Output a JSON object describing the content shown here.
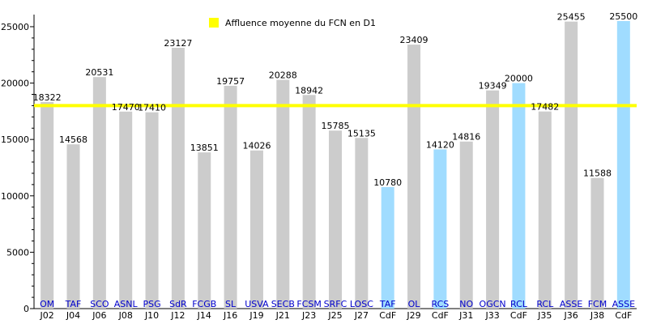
{
  "legend": {
    "label": "Affluence moyenne du FCN en D1",
    "color": "#ffff00"
  },
  "chart_data": {
    "type": "bar",
    "ylim": [
      0,
      25500
    ],
    "yticks": [
      0,
      5000,
      10000,
      15000,
      20000,
      25000
    ],
    "grid": false,
    "legend_position": "top-center",
    "colors": {
      "league": "#cccccc",
      "cup": "#a0dcff",
      "average_line": "#ffff00"
    },
    "average": 18000,
    "categories": [
      {
        "team": "OM",
        "round": "J02",
        "value": 18322,
        "kind": "league"
      },
      {
        "team": "TAF",
        "round": "J04",
        "value": 14568,
        "kind": "league"
      },
      {
        "team": "SCO",
        "round": "J06",
        "value": 20531,
        "kind": "league"
      },
      {
        "team": "ASNL",
        "round": "J08",
        "value": 17470,
        "kind": "league"
      },
      {
        "team": "PSG",
        "round": "J10",
        "value": 17410,
        "kind": "league"
      },
      {
        "team": "SdR",
        "round": "J12",
        "value": 23127,
        "kind": "league"
      },
      {
        "team": "FCGB",
        "round": "J14",
        "value": 13851,
        "kind": "league"
      },
      {
        "team": "SL",
        "round": "J16",
        "value": 19757,
        "kind": "league"
      },
      {
        "team": "USVA",
        "round": "J19",
        "value": 14026,
        "kind": "league"
      },
      {
        "team": "SECB",
        "round": "J21",
        "value": 20288,
        "kind": "league"
      },
      {
        "team": "FCSM",
        "round": "J23",
        "value": 18942,
        "kind": "league"
      },
      {
        "team": "SRFC",
        "round": "J25",
        "value": 15785,
        "kind": "league"
      },
      {
        "team": "LOSC",
        "round": "J27",
        "value": 15135,
        "kind": "league"
      },
      {
        "team": "TAF",
        "round": "CdF",
        "value": 10780,
        "kind": "cup"
      },
      {
        "team": "OL",
        "round": "J29",
        "value": 23409,
        "kind": "league"
      },
      {
        "team": "RCS",
        "round": "CdF",
        "value": 14120,
        "kind": "cup"
      },
      {
        "team": "NO",
        "round": "J31",
        "value": 14816,
        "kind": "league"
      },
      {
        "team": "OGCN",
        "round": "J33",
        "value": 19349,
        "kind": "league"
      },
      {
        "team": "RCL",
        "round": "CdF",
        "value": 20000,
        "kind": "cup"
      },
      {
        "team": "RCL",
        "round": "J35",
        "value": 17482,
        "kind": "league"
      },
      {
        "team": "ASSE",
        "round": "J36",
        "value": 25455,
        "kind": "league"
      },
      {
        "team": "FCM",
        "round": "J38",
        "value": 11588,
        "kind": "league"
      },
      {
        "team": "ASSE",
        "round": "CdF",
        "value": 25500,
        "kind": "cup"
      }
    ]
  }
}
